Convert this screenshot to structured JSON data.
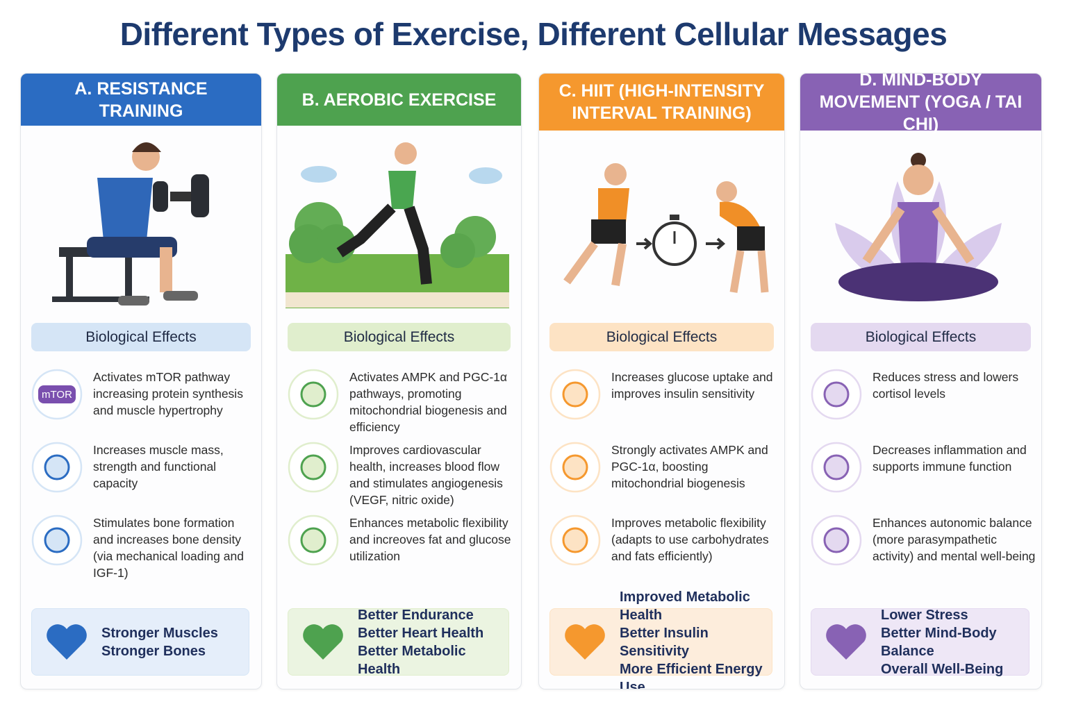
{
  "title": "Different Types of Exercise, Different Cellular Messages",
  "columns": [
    {
      "heading": "A. RESISTANCE TRAINING",
      "color": "#2b6cc2",
      "light": "#d5e5f6",
      "section": "Biological Effects",
      "effects": [
        {
          "icon": "mTOR",
          "text": "Activates mTOR pathway increasing protein synthesis and muscle hypertrophy"
        },
        {
          "text": "Increases muscle mass, strength and functional capacity"
        },
        {
          "text": "Stimulates bone formation and increases bone density (via mechanical loading and IGF-1)"
        }
      ],
      "outcomes": [
        "Stronger Muscles",
        "Stronger Bones"
      ]
    },
    {
      "heading": "B. AEROBIC EXERCISE",
      "color": "#4ea24f",
      "light": "#e0eecd",
      "section": "Biological Effects",
      "effects": [
        {
          "text": "Activates AMPK and PGC-1α pathways, promoting mitochondrial biogenesis and efficiency"
        },
        {
          "text": "Improves cardiovascular health, increases blood flow and stimulates angiogenesis (VEGF, nitric oxide)"
        },
        {
          "text": "Enhances metabolic flexibility and increoves fat and glucose utilization"
        }
      ],
      "outcomes": [
        "Better Endurance",
        "Better Heart Health",
        "Better Metabolic Health"
      ]
    },
    {
      "heading": "C. HIIT (HIGH-INTENSITY INTERVAL TRAINING)",
      "color": "#f5982e",
      "light": "#fde3c4",
      "section": "Biological Effects",
      "effects": [
        {
          "text": "Increases glucose uptake and improves insulin sensitivity"
        },
        {
          "text": "Strongly activates AMPK and PGC-1α, boosting mitochondrial biogenesis"
        },
        {
          "text": "Improves metabolic flexibility (adapts to use carbohydrates and fats efficiently)"
        }
      ],
      "outcomes": [
        "Improved Metabolic Health",
        "Better Insulin Sensitivity",
        "More Efficient Energy Use"
      ]
    },
    {
      "heading": "D. MIND-BODY MOVEMENT (YOGA / TAI CHI)",
      "color": "#8862b4",
      "light": "#e4d9f0",
      "section": "Biological Effects",
      "effects": [
        {
          "text": "Reduces stress and lowers cortisol levels"
        },
        {
          "text": "Decreases inflammation and supports immune function"
        },
        {
          "text": "Enhances autonomic balance (more parasympathetic activity) and mental well-being"
        }
      ],
      "outcomes": [
        "Lower Stress",
        "Better Mind-Body Balance",
        "Overall Well-Being"
      ]
    }
  ]
}
